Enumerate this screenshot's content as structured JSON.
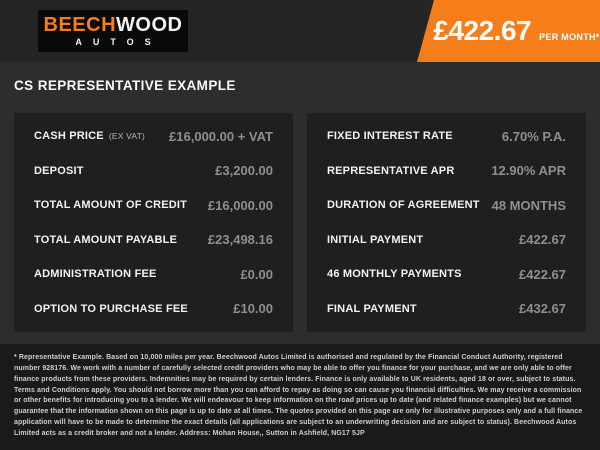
{
  "header": {
    "logo": {
      "primary": "BEECH",
      "secondary": "WOOD",
      "subtitle": "AUTOS"
    },
    "price_banner": {
      "amount": "£422.67",
      "period": "PER MONTH*"
    }
  },
  "page_title": "CS REPRESENTATIVE EXAMPLE",
  "finance_tables": {
    "left": {
      "rows": [
        {
          "label": "CASH PRICE",
          "note": "(EX VAT)",
          "value": "£16,000.00 + VAT"
        },
        {
          "label": "DEPOSIT",
          "note": "",
          "value": "£3,200.00"
        },
        {
          "label": "TOTAL AMOUNT OF CREDIT",
          "note": "",
          "value": "£16,000.00"
        },
        {
          "label": "TOTAL AMOUNT PAYABLE",
          "note": "",
          "value": "£23,498.16"
        },
        {
          "label": "ADMINISTRATION FEE",
          "note": "",
          "value": "£0.00"
        },
        {
          "label": "OPTION TO PURCHASE FEE",
          "note": "",
          "value": "£10.00"
        }
      ]
    },
    "right": {
      "rows": [
        {
          "label": "FIXED INTEREST RATE",
          "note": "",
          "value": "6.70% P.A."
        },
        {
          "label": "REPRESENTATIVE APR",
          "note": "",
          "value": "12.90% APR"
        },
        {
          "label": "DURATION OF AGREEMENT",
          "note": "",
          "value": "48 MONTHS"
        },
        {
          "label": "INITIAL PAYMENT",
          "note": "",
          "value": "£422.67"
        },
        {
          "label": "46 MONTHLY PAYMENTS",
          "note": "",
          "value": "£422.67"
        },
        {
          "label": "FINAL PAYMENT",
          "note": "",
          "value": "£432.67"
        }
      ]
    }
  },
  "disclaimer": "* Representative Example. Based on 10,000 miles per year. Beechwood Autos Limited is authorised and regulated by the Financial Conduct Authority, registered number 928176. We work with a number of carefully selected credit providers who may be able to offer you finance for your purchase, and we are only able to offer finance products from these providers. Indemnities may be required by certain lenders. Finance is only available to UK residents, aged 18 or over, subject to status. Terms and Conditions apply. You should not borrow more than you can afford to repay as doing so can cause you financial difficulties. We may receive a commission or other benefits for introducing you to a lender. We will endeavour to keep information on the road prices up to date (and related finance examples) but we cannot guarantee that the information shown on this page is up to date at all times. The quotes provided on this page are only for illustrative purposes only and a full finance application will have to be made to determine the exact details (all applications are subject to an underwriting decision and are subject to status). Beechwood Autos Limited acts as a credit broker and not a lender. Address: Mohan House,, Sutton in Ashfield, NG17 5JP",
  "colors": {
    "accent_orange": "#f57d1a",
    "page_bg": "#2d2d2d",
    "header_bg": "#252525",
    "panel_bg": "#1f1f1f",
    "footer_bg": "#1a1a1a",
    "label_text": "#f2f2f2",
    "value_text": "#8f8f8f"
  }
}
